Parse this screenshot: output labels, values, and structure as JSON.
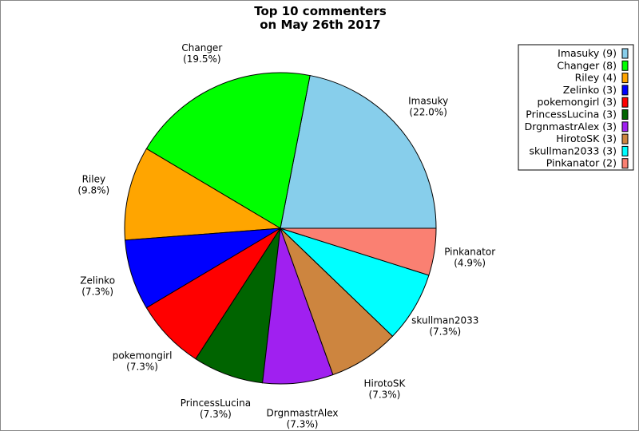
{
  "chart_data": {
    "type": "pie",
    "title": [
      "Top 10 commenters",
      "on May 26th 2017"
    ],
    "legend_position": "top-right",
    "start_angle_deg": 0,
    "direction": "counterclockwise",
    "slices": [
      {
        "name": "Imasuky",
        "value": 9,
        "percent": "22.0%",
        "legend": "Imasuky (9)",
        "color": "#87CEEB"
      },
      {
        "name": "Changer",
        "value": 8,
        "percent": "19.5%",
        "legend": "Changer (8)",
        "color": "#00FF00"
      },
      {
        "name": "Riley",
        "value": 4,
        "percent": "9.8%",
        "legend": "Riley (4)",
        "color": "#FFA500"
      },
      {
        "name": "Zelinko",
        "value": 3,
        "percent": "7.3%",
        "legend": "Zelinko (3)",
        "color": "#0000FF"
      },
      {
        "name": "pokemongirl",
        "value": 3,
        "percent": "7.3%",
        "legend": "pokemongirl (3)",
        "color": "#FF0000"
      },
      {
        "name": "PrincessLucina",
        "value": 3,
        "percent": "7.3%",
        "legend": "PrincessLucina (3)",
        "color": "#006400"
      },
      {
        "name": "DrgnmastrAlex",
        "value": 3,
        "percent": "7.3%",
        "legend": "DrgnmastrAlex (3)",
        "color": "#A020F0"
      },
      {
        "name": "HirotoSK",
        "value": 3,
        "percent": "7.3%",
        "legend": "HirotoSK (3)",
        "color": "#CD853F"
      },
      {
        "name": "skullman2033",
        "value": 3,
        "percent": "7.3%",
        "legend": "skullman2033 (3)",
        "color": "#00FFFF"
      },
      {
        "name": "Pinkanator",
        "value": 2,
        "percent": "4.9%",
        "legend": "Pinkanator (2)",
        "color": "#FA8072"
      }
    ]
  }
}
